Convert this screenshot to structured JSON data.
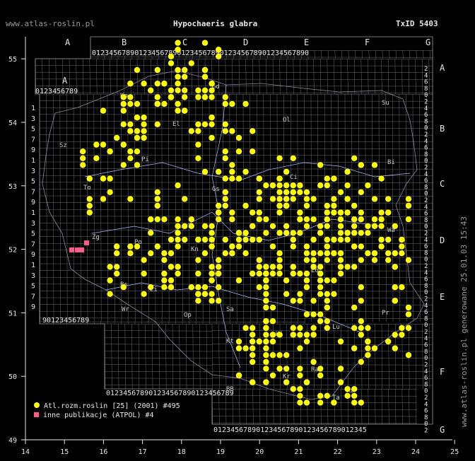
{
  "header": {
    "site": "www.atlas-roslin.pl",
    "title": "Hypochaeris glabra",
    "taxid": "TxID 5403",
    "side_note": "www.atlas-roslin.pl generowane 25.01.03 15:43"
  },
  "legend": {
    "atlas_label": "Atl.rozm.roslin [25] (2001) #495",
    "other_label": "inne publikacje (ATPOL) #4",
    "atlas_color": "#ffff00",
    "other_color": "#ff5a8c"
  },
  "axes": {
    "lon_ticks": [
      "14",
      "15",
      "16",
      "17",
      "18",
      "19",
      "20",
      "21",
      "22",
      "23",
      "24",
      "25"
    ],
    "lat_ticks": [
      "49",
      "50",
      "51",
      "52",
      "53",
      "54",
      "55"
    ]
  },
  "grid": {
    "letters": [
      "A",
      "B",
      "C",
      "D",
      "E",
      "F",
      "G"
    ],
    "digits": "0123456789"
  },
  "regions": [
    "Sz",
    "Gd",
    "Ko",
    "El",
    "Ol",
    "Su",
    "Bi",
    "Pi",
    "To",
    "Ci",
    "Gs",
    "Zg",
    "Po",
    "Kn",
    "Lo",
    "Wa",
    "Bs",
    "Zi",
    "Wr",
    "Op",
    "Sa",
    "Kt",
    "Ki",
    "Lu",
    "Ra",
    "BB",
    "Kr",
    "Ta",
    "Rz",
    "Pr"
  ],
  "observations_count": "495",
  "other_count": "4"
}
